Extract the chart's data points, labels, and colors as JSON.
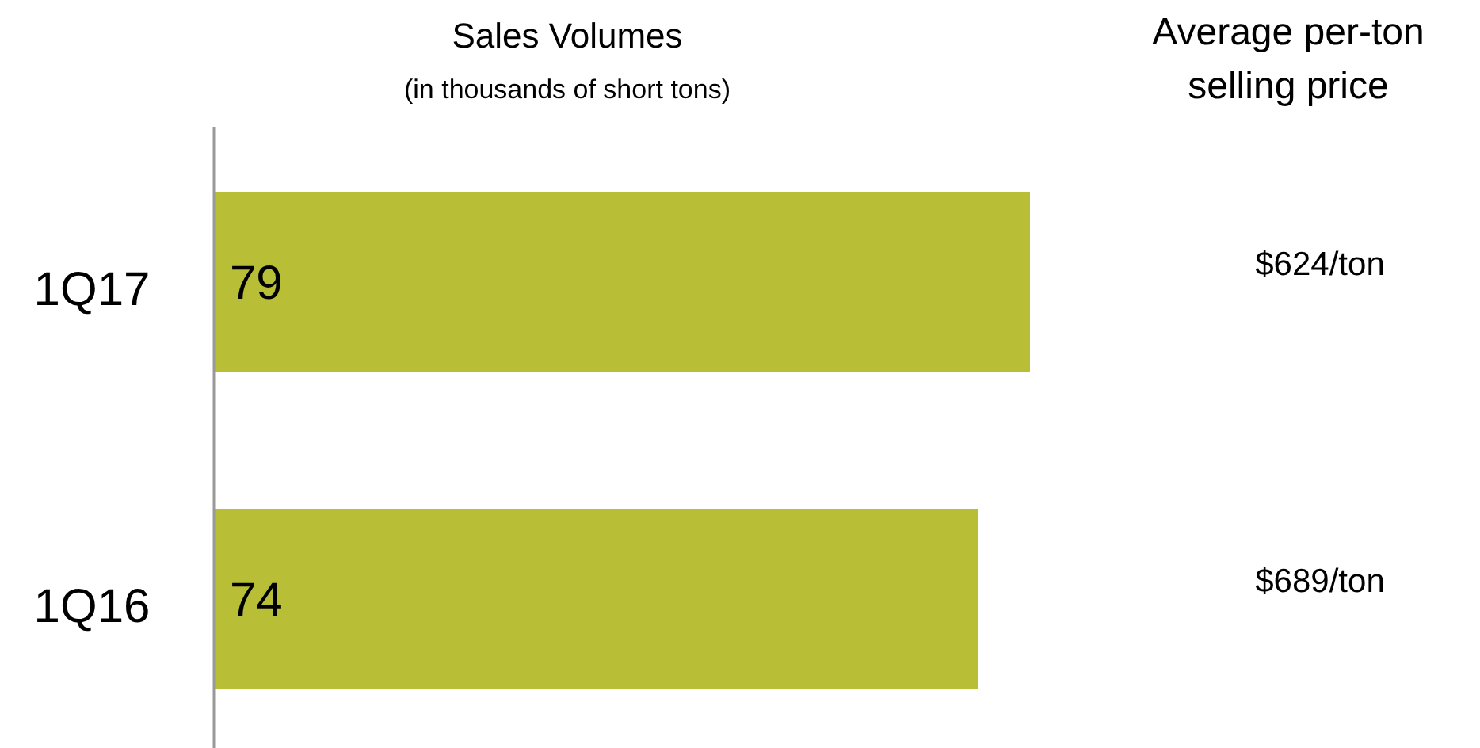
{
  "chart_data": {
    "type": "bar",
    "orientation": "horizontal",
    "title": "Sales Volumes",
    "subtitle": "(in thousands of short tons)",
    "categories": [
      "1Q17",
      "1Q16"
    ],
    "values": [
      79,
      74
    ],
    "color": "#b8bf36",
    "data_labels": true,
    "annotations": [
      "Average per-ton selling price",
      "$624/ton",
      "$689/ton"
    ]
  }
}
